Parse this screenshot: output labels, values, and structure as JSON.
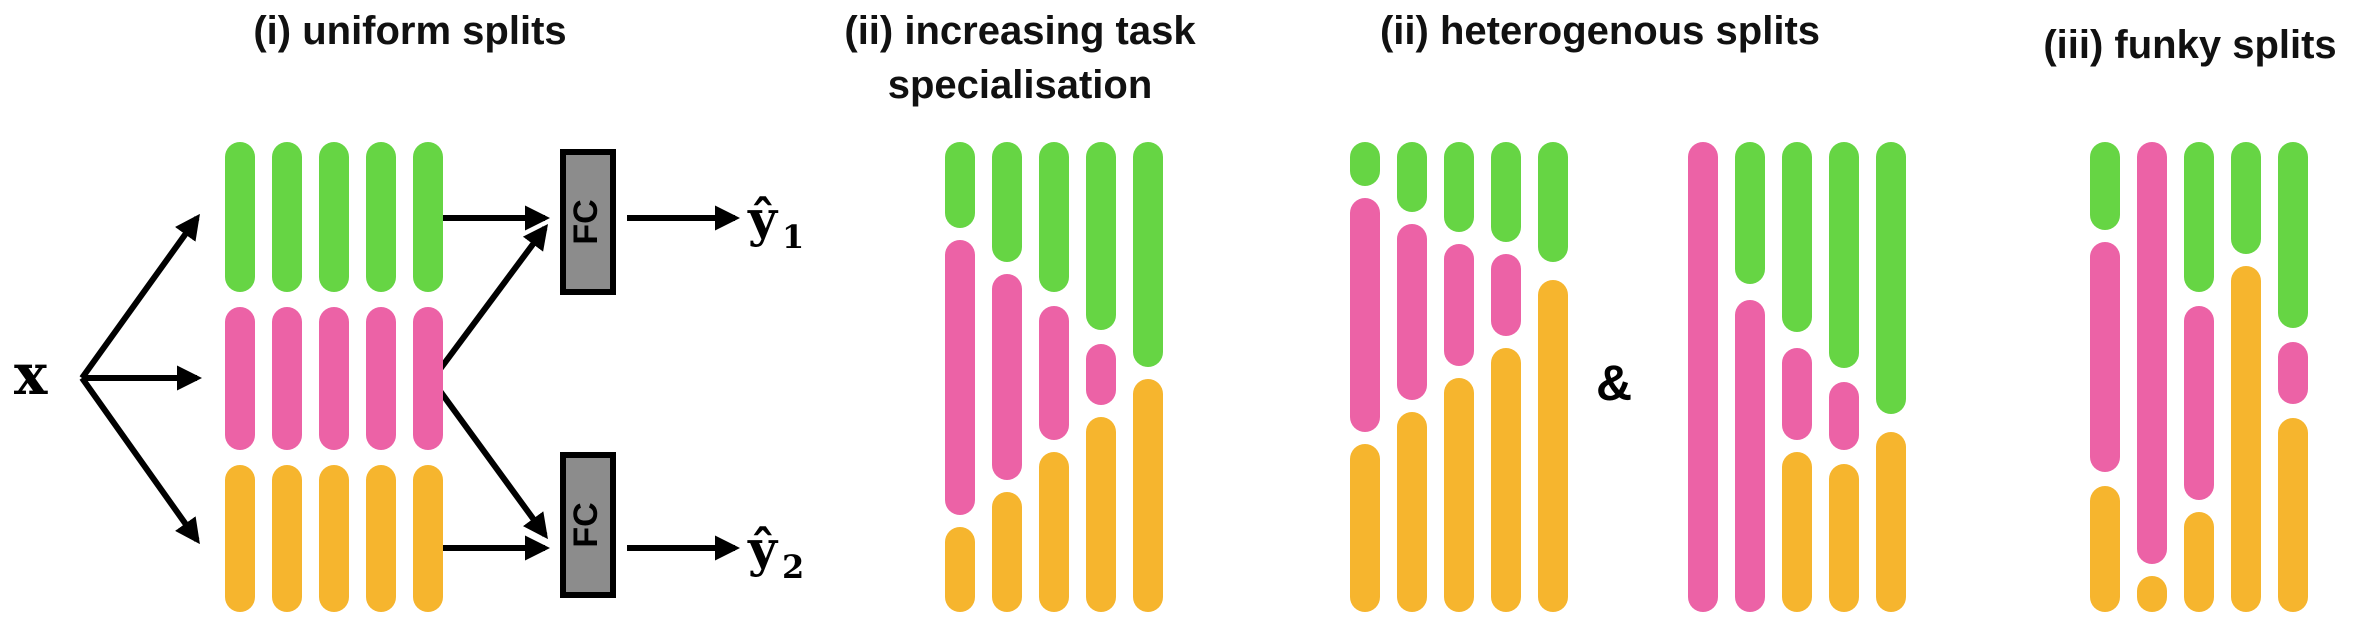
{
  "titles": {
    "uniform": "(i) uniform splits",
    "increasing_line1": "(ii) increasing task",
    "increasing_line2": "specialisation",
    "heterogenous": "(ii) heterogenous splits",
    "funky": "(iii) funky splits"
  },
  "labels": {
    "input": "x",
    "fc": "FC",
    "output1_main": "ŷ",
    "output1_sub": "1",
    "output2_main": "ŷ",
    "output2_sub": "2",
    "ampersand": "&"
  },
  "colors": {
    "task1": "#66d544",
    "task2": "#ec62a6",
    "shared": "#f6b52e",
    "fc_fill": "#8c8c8c",
    "stroke": "#000000"
  },
  "legend_semantics": {
    "task1": "green segments",
    "task2": "pink segments",
    "shared": "orange segments"
  },
  "icons": [
    "arrow-icon"
  ]
}
